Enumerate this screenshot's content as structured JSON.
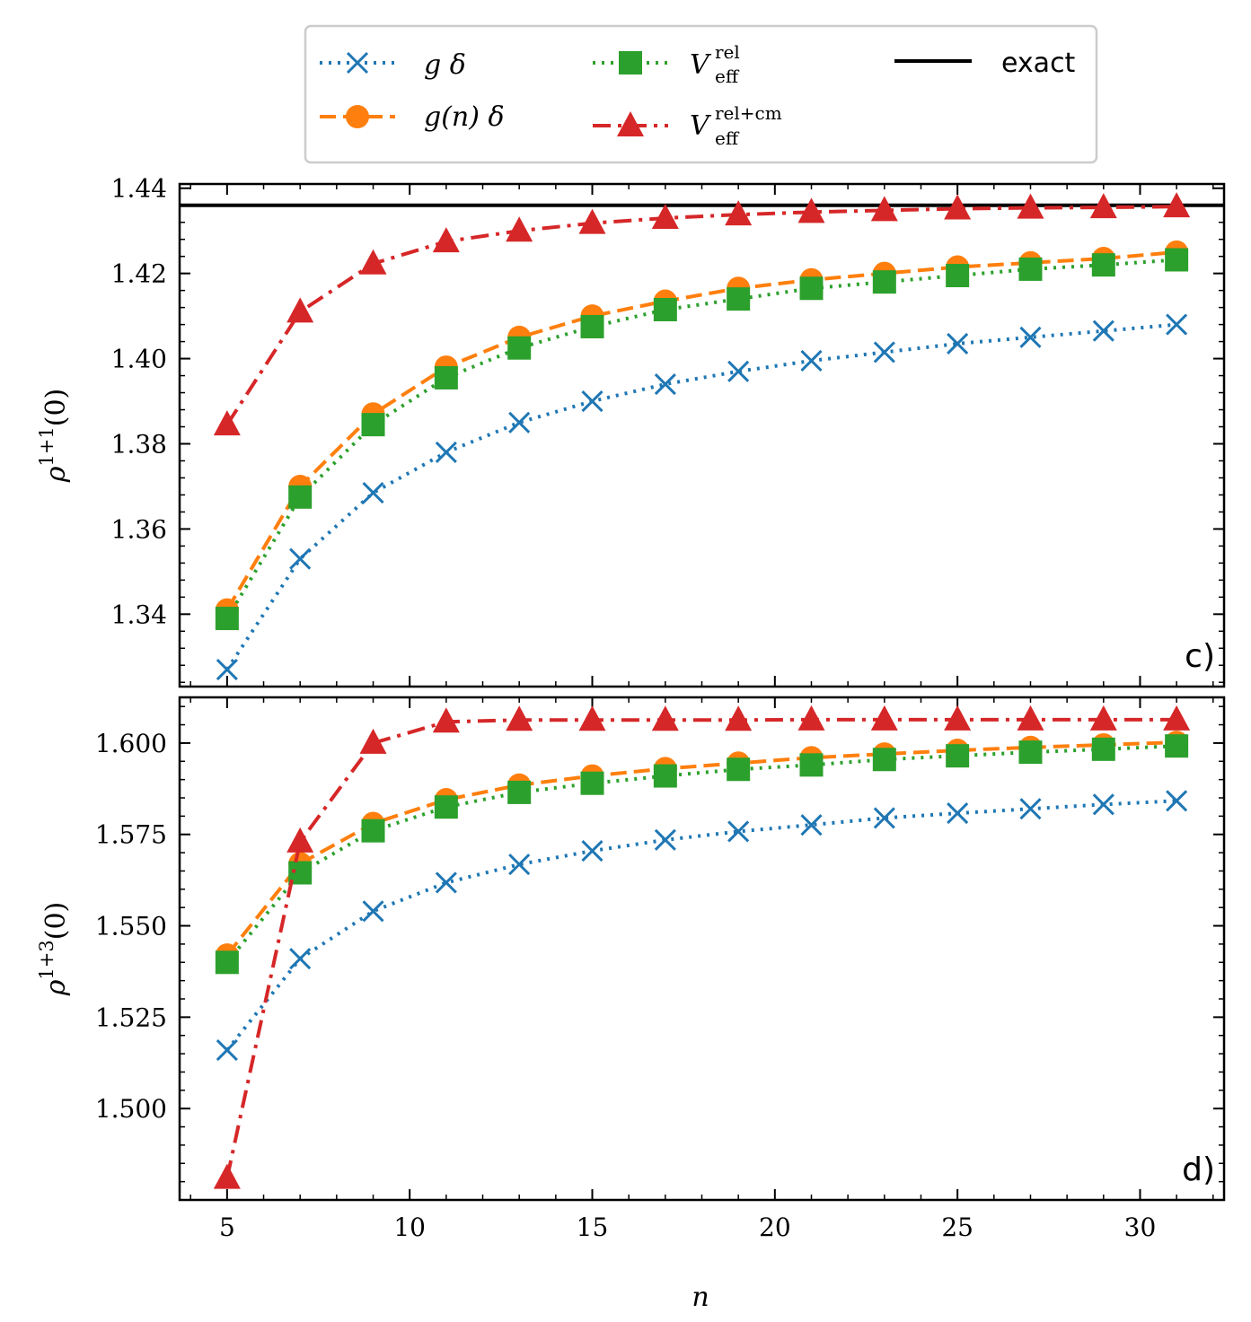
{
  "colors": {
    "g_delta": "#1f77b4",
    "g_n_delta": "#ff7f0e",
    "veff_rel": "#2ca02c",
    "veff_rel_cm": "#d62728",
    "exact": "#000000"
  },
  "legend": {
    "entries": [
      {
        "key": "g_delta",
        "label": "g δ",
        "marker": "x",
        "dash": "dotted"
      },
      {
        "key": "g_n_delta",
        "label": "g(n) δ",
        "marker": "circle",
        "dash": "dashed"
      },
      {
        "key": "veff_rel",
        "label_main": "V",
        "label_sup": "rel",
        "label_sub": "eff",
        "marker": "square",
        "dash": "dotted"
      },
      {
        "key": "veff_rel_cm",
        "label_main": "V",
        "label_sup": "rel+cm",
        "label_sub": "eff",
        "marker": "triangle",
        "dash": "dashdot"
      },
      {
        "key": "exact",
        "label": "exact",
        "marker": "none",
        "dash": "solid"
      }
    ]
  },
  "xlabel": "n",
  "x_ticks": [
    "5",
    "10",
    "15",
    "20",
    "25",
    "30"
  ],
  "chart_data": [
    {
      "type": "line",
      "panel_label": "c)",
      "ylabel_main": "ρ",
      "ylabel_sup": "1+1",
      "ylabel_tail": "(0)",
      "xlim": [
        3.7,
        32.3
      ],
      "ylim": [
        1.323,
        1.441
      ],
      "y_ticks": [
        "1.34",
        "1.36",
        "1.38",
        "1.40",
        "1.42",
        "1.44"
      ],
      "y_tick_values": [
        1.34,
        1.36,
        1.38,
        1.4,
        1.42,
        1.44
      ],
      "x": [
        5,
        7,
        9,
        11,
        13,
        15,
        17,
        19,
        21,
        23,
        25,
        27,
        29,
        31
      ],
      "exact": 1.436,
      "series": [
        {
          "name": "g δ",
          "key": "g_delta",
          "values": [
            1.327,
            1.353,
            1.3685,
            1.378,
            1.385,
            1.39,
            1.394,
            1.397,
            1.3995,
            1.4015,
            1.4035,
            1.405,
            1.4065,
            1.408
          ]
        },
        {
          "name": "g(n) δ",
          "key": "g_n_delta",
          "values": [
            1.341,
            1.37,
            1.387,
            1.398,
            1.405,
            1.41,
            1.4135,
            1.4165,
            1.4185,
            1.42,
            1.4215,
            1.4225,
            1.4235,
            1.425
          ]
        },
        {
          "name": "V_eff^rel",
          "key": "veff_rel",
          "values": [
            1.339,
            1.3675,
            1.3845,
            1.3955,
            1.4025,
            1.4075,
            1.4115,
            1.414,
            1.4165,
            1.418,
            1.4195,
            1.421,
            1.422,
            1.4232
          ]
        },
        {
          "name": "V_eff^rel+cm",
          "key": "veff_rel_cm",
          "values": [
            1.3845,
            1.411,
            1.4223,
            1.4275,
            1.43,
            1.4318,
            1.433,
            1.4338,
            1.4344,
            1.4348,
            1.4352,
            1.4354,
            1.4355,
            1.4357
          ]
        }
      ]
    },
    {
      "type": "line",
      "panel_label": "d)",
      "ylabel_main": "ρ",
      "ylabel_sup": "1+3",
      "ylabel_tail": "(0)",
      "xlim": [
        3.7,
        32.3
      ],
      "ylim": [
        1.475,
        1.6125
      ],
      "y_ticks": [
        "1.500",
        "1.525",
        "1.550",
        "1.575",
        "1.600"
      ],
      "y_tick_values": [
        1.5,
        1.525,
        1.55,
        1.575,
        1.6
      ],
      "x": [
        5,
        7,
        9,
        11,
        13,
        15,
        17,
        19,
        21,
        23,
        25,
        27,
        29,
        31
      ],
      "series": [
        {
          "name": "g δ",
          "key": "g_delta",
          "values": [
            1.516,
            1.541,
            1.554,
            1.5618,
            1.5668,
            1.5705,
            1.5735,
            1.5758,
            1.5776,
            1.5795,
            1.5808,
            1.582,
            1.5832,
            1.5842
          ]
        },
        {
          "name": "g(n) δ",
          "key": "g_n_delta",
          "values": [
            1.542,
            1.567,
            1.578,
            1.5845,
            1.5885,
            1.591,
            1.593,
            1.5945,
            1.596,
            1.597,
            1.598,
            1.5988,
            1.5995,
            1.6002
          ]
        },
        {
          "name": "V_eff^rel",
          "key": "veff_rel",
          "values": [
            1.54,
            1.5645,
            1.576,
            1.5825,
            1.5865,
            1.589,
            1.591,
            1.5928,
            1.594,
            1.5955,
            1.5965,
            1.5975,
            1.5983,
            1.5992
          ]
        },
        {
          "name": "V_eff^rel+cm",
          "key": "veff_rel_cm",
          "values": [
            1.481,
            1.573,
            1.6,
            1.6058,
            1.6063,
            1.6063,
            1.6063,
            1.6063,
            1.6064,
            1.6064,
            1.6064,
            1.6064,
            1.6064,
            1.6064
          ]
        }
      ]
    }
  ]
}
